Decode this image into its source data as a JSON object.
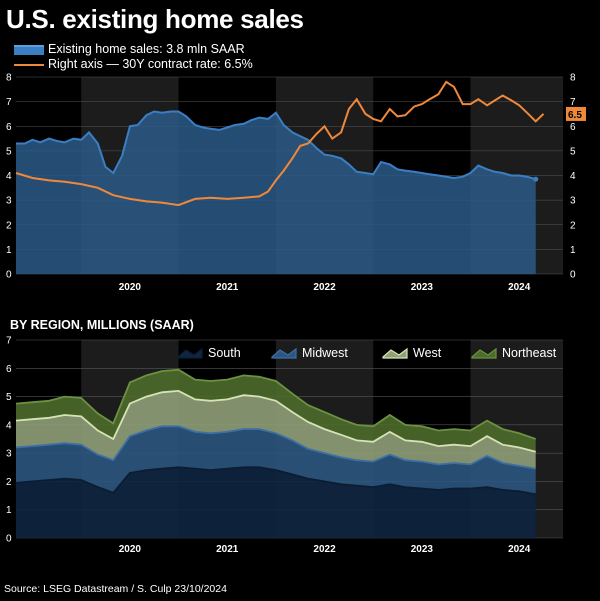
{
  "title": "U.S. existing home sales",
  "source": "Source: LSEG Datastream / S. Culp 23/10/2024",
  "colors": {
    "sales": "#3a7fc4",
    "rate": "#f0883a",
    "south": "#122a4a",
    "midwest": "#2e5f90",
    "west": "#b9c99a",
    "northeast": "#5d7d34"
  },
  "chart_data": [
    {
      "type": "area",
      "legend": [
        "Existing home sales: 3.8 mln SAAR",
        "Right axis — 30Y contract rate: 6.5%"
      ],
      "x_ticks": [
        "2020",
        "2021",
        "2022",
        "2023",
        "2024"
      ],
      "y_ticks": [
        "0",
        "1",
        "2",
        "3",
        "4",
        "5",
        "6",
        "7",
        "8"
      ],
      "ylim": [
        0,
        8
      ],
      "y2_ticks": [
        "0",
        "1",
        "2",
        "3",
        "4",
        "5",
        "6",
        "7",
        "8"
      ],
      "y2lim": [
        0,
        8
      ],
      "last_rate_label": "6.5",
      "series": [
        {
          "name": "Existing home sales",
          "x": [
            2019.33,
            2019.42,
            2019.5,
            2019.58,
            2019.67,
            2019.75,
            2019.83,
            2019.92,
            2020.0,
            2020.08,
            2020.17,
            2020.25,
            2020.33,
            2020.42,
            2020.5,
            2020.58,
            2020.67,
            2020.75,
            2020.83,
            2020.92,
            2021.0,
            2021.08,
            2021.17,
            2021.25,
            2021.33,
            2021.42,
            2021.5,
            2021.58,
            2021.67,
            2021.75,
            2021.83,
            2021.92,
            2022.0,
            2022.08,
            2022.17,
            2022.25,
            2022.33,
            2022.42,
            2022.5,
            2022.58,
            2022.67,
            2022.75,
            2022.83,
            2022.92,
            2023.0,
            2023.08,
            2023.17,
            2023.25,
            2023.33,
            2023.42,
            2023.5,
            2023.58,
            2023.67,
            2023.75,
            2023.83,
            2023.92,
            2024.0,
            2024.08,
            2024.17,
            2024.25,
            2024.33,
            2024.42,
            2024.5,
            2024.58,
            2024.67
          ],
          "values": [
            5.3,
            5.3,
            5.45,
            5.35,
            5.5,
            5.4,
            5.35,
            5.5,
            5.45,
            5.75,
            5.3,
            4.35,
            4.1,
            4.8,
            6.0,
            6.05,
            6.45,
            6.6,
            6.55,
            6.6,
            6.6,
            6.4,
            6.05,
            5.95,
            5.9,
            5.85,
            5.95,
            6.05,
            6.1,
            6.25,
            6.35,
            6.3,
            6.55,
            6.05,
            5.75,
            5.6,
            5.45,
            5.1,
            4.85,
            4.8,
            4.7,
            4.45,
            4.15,
            4.1,
            4.05,
            4.55,
            4.45,
            4.25,
            4.2,
            4.15,
            4.1,
            4.05,
            4.0,
            3.95,
            3.9,
            3.95,
            4.1,
            4.4,
            4.25,
            4.15,
            4.1,
            4.0,
            4.0,
            3.95,
            3.85
          ]
        },
        {
          "name": "30Y contract rate",
          "x": [
            2019.33,
            2019.5,
            2019.67,
            2019.83,
            2020.0,
            2020.17,
            2020.33,
            2020.5,
            2020.67,
            2020.83,
            2021.0,
            2021.17,
            2021.33,
            2021.5,
            2021.67,
            2021.83,
            2021.92,
            2022.0,
            2022.08,
            2022.17,
            2022.25,
            2022.33,
            2022.42,
            2022.5,
            2022.58,
            2022.67,
            2022.75,
            2022.83,
            2022.92,
            2023.0,
            2023.08,
            2023.17,
            2023.25,
            2023.33,
            2023.42,
            2023.5,
            2023.58,
            2023.67,
            2023.75,
            2023.83,
            2023.92,
            2024.0,
            2024.08,
            2024.17,
            2024.25,
            2024.33,
            2024.42,
            2024.5,
            2024.58,
            2024.67,
            2024.75
          ],
          "values": [
            4.1,
            3.9,
            3.8,
            3.75,
            3.65,
            3.5,
            3.2,
            3.05,
            2.95,
            2.9,
            2.8,
            3.05,
            3.1,
            3.05,
            3.1,
            3.15,
            3.35,
            3.8,
            4.2,
            4.7,
            5.2,
            5.3,
            5.7,
            6.0,
            5.5,
            5.75,
            6.7,
            7.1,
            6.5,
            6.3,
            6.2,
            6.7,
            6.4,
            6.45,
            6.8,
            6.9,
            7.1,
            7.3,
            7.8,
            7.6,
            6.9,
            6.9,
            7.1,
            6.85,
            7.05,
            7.25,
            7.05,
            6.85,
            6.55,
            6.2,
            6.5
          ]
        }
      ]
    },
    {
      "type": "area",
      "title": "BY REGION, MILLIONS (SAAR)",
      "legend": [
        "South",
        "Midwest",
        "West",
        "Northeast"
      ],
      "x_ticks": [
        "2020",
        "2021",
        "2022",
        "2023",
        "2024"
      ],
      "y_ticks": [
        "0",
        "1",
        "2",
        "3",
        "4",
        "5",
        "6",
        "7"
      ],
      "ylim": [
        0,
        7
      ],
      "stacked": true,
      "x": [
        2019.33,
        2019.5,
        2019.67,
        2019.83,
        2020.0,
        2020.17,
        2020.33,
        2020.5,
        2020.67,
        2020.83,
        2021.0,
        2021.17,
        2021.33,
        2021.5,
        2021.67,
        2021.83,
        2022.0,
        2022.17,
        2022.33,
        2022.5,
        2022.67,
        2022.83,
        2023.0,
        2023.17,
        2023.33,
        2023.5,
        2023.67,
        2023.83,
        2024.0,
        2024.17,
        2024.33,
        2024.5,
        2024.67
      ],
      "series": [
        {
          "name": "South",
          "values": [
            1.95,
            2.0,
            2.05,
            2.1,
            2.05,
            1.8,
            1.6,
            2.3,
            2.4,
            2.45,
            2.5,
            2.45,
            2.4,
            2.45,
            2.5,
            2.5,
            2.4,
            2.25,
            2.1,
            2.0,
            1.9,
            1.85,
            1.8,
            1.9,
            1.8,
            1.75,
            1.7,
            1.75,
            1.75,
            1.8,
            1.7,
            1.65,
            1.55
          ]
        },
        {
          "name": "Midwest",
          "values": [
            3.2,
            3.25,
            3.3,
            3.35,
            3.3,
            2.95,
            2.75,
            3.6,
            3.8,
            3.95,
            3.95,
            3.75,
            3.7,
            3.75,
            3.85,
            3.85,
            3.7,
            3.45,
            3.15,
            3.0,
            2.85,
            2.75,
            2.7,
            2.95,
            2.75,
            2.7,
            2.6,
            2.65,
            2.6,
            2.9,
            2.65,
            2.55,
            2.45
          ]
        },
        {
          "name": "West",
          "values": [
            4.15,
            4.2,
            4.25,
            4.35,
            4.3,
            3.8,
            3.5,
            4.75,
            5.0,
            5.15,
            5.2,
            4.9,
            4.85,
            4.9,
            5.05,
            5.0,
            4.85,
            4.45,
            4.1,
            3.85,
            3.65,
            3.45,
            3.4,
            3.75,
            3.45,
            3.4,
            3.25,
            3.3,
            3.25,
            3.6,
            3.3,
            3.2,
            3.05
          ]
        },
        {
          "name": "Northeast",
          "values": [
            4.75,
            4.8,
            4.85,
            5.0,
            4.95,
            4.4,
            4.05,
            5.5,
            5.75,
            5.9,
            5.95,
            5.6,
            5.55,
            5.6,
            5.75,
            5.7,
            5.55,
            5.1,
            4.7,
            4.45,
            4.2,
            4.0,
            3.95,
            4.35,
            4.0,
            3.95,
            3.8,
            3.85,
            3.8,
            4.15,
            3.85,
            3.7,
            3.5
          ]
        }
      ]
    }
  ]
}
